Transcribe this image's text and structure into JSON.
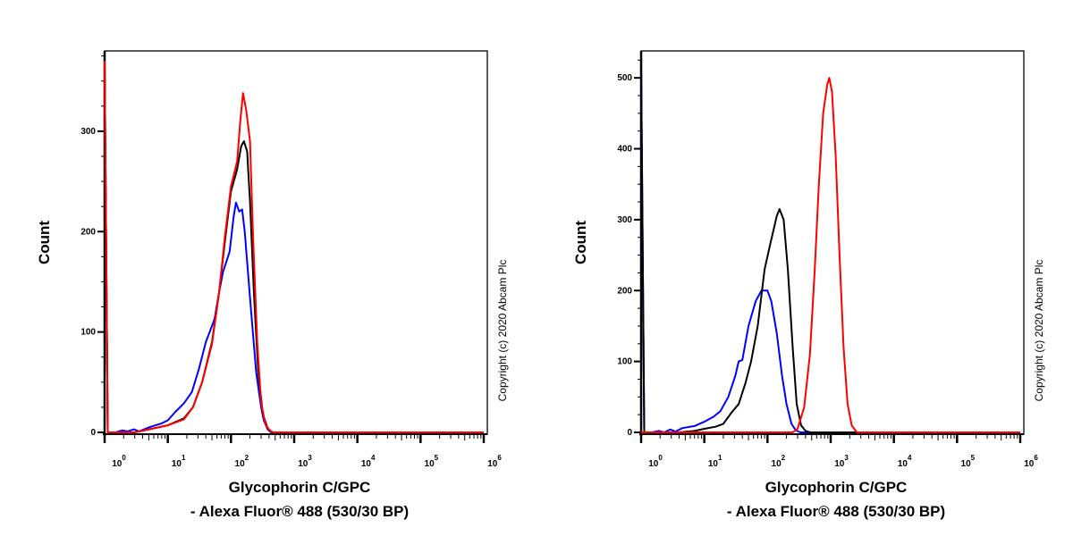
{
  "chart_data": [
    {
      "type": "line",
      "xscale": "log",
      "xlim": [
        1,
        1000000
      ],
      "ylim": [
        0,
        380
      ],
      "ylabel": "Count",
      "xlabel_lines": [
        "Glycophorin C/GPC",
        "- Alexa Fluor® 488 (530/30 BP)"
      ],
      "x_tick_base": "10",
      "x_tick_exponents": [
        "0",
        "1",
        "2",
        "3",
        "4",
        "5",
        "6"
      ],
      "y_ticks": [
        0,
        100,
        200,
        300
      ],
      "y_minor_step": 25,
      "copyright": "Copyright (c) 2020 Abcam Plc",
      "series": [
        {
          "color": "#0000ff",
          "points": [
            [
              1,
              370
            ],
            [
              1.12,
              0
            ],
            [
              1.5,
              0
            ],
            [
              1.9,
              2
            ],
            [
              2.3,
              1
            ],
            [
              2.9,
              3
            ],
            [
              3.5,
              1
            ],
            [
              5,
              5
            ],
            [
              8,
              9
            ],
            [
              10,
              12
            ],
            [
              13,
              20
            ],
            [
              18,
              29
            ],
            [
              24,
              40
            ],
            [
              31,
              63
            ],
            [
              40,
              90
            ],
            [
              55,
              113
            ],
            [
              65,
              140
            ],
            [
              75,
              160
            ],
            [
              95,
              180
            ],
            [
              110,
              215
            ],
            [
              120,
              229
            ],
            [
              135,
              220
            ],
            [
              150,
              222
            ],
            [
              165,
              200
            ],
            [
              200,
              134
            ],
            [
              250,
              60
            ],
            [
              300,
              25
            ],
            [
              330,
              12
            ],
            [
              380,
              3
            ],
            [
              430,
              0
            ],
            [
              1000000,
              0
            ]
          ]
        },
        {
          "color": "#000000",
          "points": [
            [
              1,
              370
            ],
            [
              1.12,
              0
            ],
            [
              3,
              0
            ],
            [
              5,
              3
            ],
            [
              10,
              7
            ],
            [
              18,
              14
            ],
            [
              25,
              25
            ],
            [
              35,
              50
            ],
            [
              50,
              90
            ],
            [
              65,
              140
            ],
            [
              80,
              190
            ],
            [
              100,
              240
            ],
            [
              125,
              262
            ],
            [
              145,
              285
            ],
            [
              160,
              290
            ],
            [
              180,
              280
            ],
            [
              200,
              230
            ],
            [
              230,
              140
            ],
            [
              270,
              60
            ],
            [
              320,
              18
            ],
            [
              380,
              4
            ],
            [
              450,
              0
            ],
            [
              1000000,
              0
            ]
          ]
        },
        {
          "color": "#ff0000",
          "points": [
            [
              1,
              370
            ],
            [
              1.12,
              0
            ],
            [
              3,
              0
            ],
            [
              5,
              3
            ],
            [
              10,
              7
            ],
            [
              18,
              13
            ],
            [
              25,
              25
            ],
            [
              35,
              50
            ],
            [
              50,
              88
            ],
            [
              65,
              140
            ],
            [
              80,
              195
            ],
            [
              100,
              245
            ],
            [
              125,
              270
            ],
            [
              140,
              310
            ],
            [
              155,
              338
            ],
            [
              175,
              320
            ],
            [
              200,
              290
            ],
            [
              225,
              190
            ],
            [
              260,
              90
            ],
            [
              300,
              30
            ],
            [
              350,
              8
            ],
            [
              420,
              1
            ],
            [
              480,
              0
            ],
            [
              1000000,
              0
            ]
          ]
        }
      ]
    },
    {
      "type": "line",
      "xscale": "log",
      "xlim": [
        1,
        1000000
      ],
      "ylim": [
        0,
        538
      ],
      "ylabel": "Count",
      "xlabel_lines": [
        "Glycophorin C/GPC",
        "- Alexa Fluor® 488 (530/30 BP)"
      ],
      "x_tick_base": "10",
      "x_tick_exponents": [
        "0",
        "1",
        "2",
        "3",
        "4",
        "5",
        "6"
      ],
      "y_ticks": [
        0,
        100,
        200,
        300,
        400,
        500
      ],
      "y_minor_step": 25,
      "copyright": "Copyright (c) 2020 Abcam Plc",
      "series": [
        {
          "color": "#0000ff",
          "points": [
            [
              1,
              520
            ],
            [
              1.12,
              0
            ],
            [
              1.5,
              0
            ],
            [
              1.9,
              2
            ],
            [
              2.3,
              0
            ],
            [
              2.9,
              4
            ],
            [
              3.5,
              1
            ],
            [
              4.5,
              6
            ],
            [
              7,
              9
            ],
            [
              10,
              15
            ],
            [
              14,
              22
            ],
            [
              18,
              30
            ],
            [
              24,
              50
            ],
            [
              31,
              80
            ],
            [
              35,
              100
            ],
            [
              40,
              102
            ],
            [
              50,
              150
            ],
            [
              65,
              185
            ],
            [
              80,
              200
            ],
            [
              100,
              200
            ],
            [
              115,
              185
            ],
            [
              140,
              140
            ],
            [
              170,
              80
            ],
            [
              200,
              40
            ],
            [
              240,
              12
            ],
            [
              280,
              3
            ],
            [
              330,
              0
            ],
            [
              1000000,
              0
            ]
          ]
        },
        {
          "color": "#000000",
          "points": [
            [
              1,
              520
            ],
            [
              1.12,
              0
            ],
            [
              4,
              0
            ],
            [
              7,
              2
            ],
            [
              10,
              5
            ],
            [
              15,
              8
            ],
            [
              20,
              12
            ],
            [
              27,
              28
            ],
            [
              35,
              40
            ],
            [
              45,
              70
            ],
            [
              55,
              100
            ],
            [
              70,
              150
            ],
            [
              90,
              230
            ],
            [
              110,
              265
            ],
            [
              140,
              305
            ],
            [
              155,
              315
            ],
            [
              180,
              300
            ],
            [
              210,
              230
            ],
            [
              250,
              120
            ],
            [
              290,
              40
            ],
            [
              340,
              10
            ],
            [
              400,
              2
            ],
            [
              480,
              0
            ],
            [
              1000000,
              0
            ]
          ]
        },
        {
          "color": "#ff0000",
          "points": [
            [
              1,
              0
            ],
            [
              250,
              0
            ],
            [
              300,
              5
            ],
            [
              380,
              35
            ],
            [
              470,
              110
            ],
            [
              560,
              230
            ],
            [
              650,
              350
            ],
            [
              760,
              450
            ],
            [
              880,
              490
            ],
            [
              950,
              500
            ],
            [
              1050,
              480
            ],
            [
              1200,
              390
            ],
            [
              1380,
              250
            ],
            [
              1600,
              120
            ],
            [
              1850,
              40
            ],
            [
              2150,
              10
            ],
            [
              2600,
              0
            ],
            [
              1000000,
              0
            ]
          ]
        }
      ]
    }
  ]
}
